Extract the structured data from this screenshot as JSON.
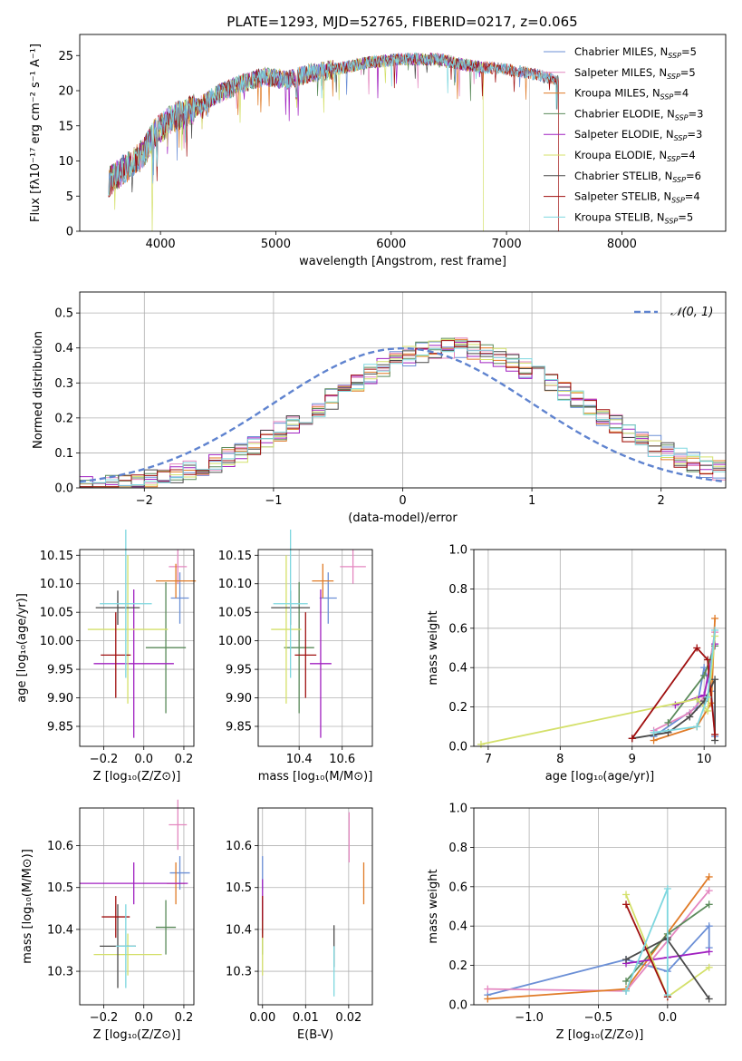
{
  "colors": {
    "Chabrier MILES": "#6b8fd6",
    "Salpeter MILES": "#e487c0",
    "Kroupa MILES": "#e07b27",
    "Chabrier ELODIE": "#5a8a5a",
    "Salpeter ELODIE": "#a020c0",
    "Kroupa ELODIE": "#d4e06a",
    "Chabrier STELIB": "#4a4a4a",
    "Salpeter STELIB": "#a01010",
    "Kroupa STELIB": "#7ed7df"
  },
  "chart_data": [
    {
      "type": "line",
      "title": "PLATE=1293, MJD=52765, FIBERID=0217, z=0.065",
      "xlabel": "wavelength [Angstrom, rest frame]",
      "ylabel": "Flux [fλ10⁻¹⁷ erg cm⁻² s⁻¹ A⁻¹]",
      "xlim": [
        3300,
        8900
      ],
      "ylim": [
        0,
        28
      ],
      "xticks": [
        "4000",
        "5000",
        "6000",
        "7000",
        "8000"
      ],
      "yticks": [
        "0",
        "5",
        "10",
        "15",
        "20",
        "25"
      ],
      "legend_position": "upper-right",
      "legend": [
        "Chabrier MILES, N_SSP=5",
        "Salpeter MILES, N_SSP=5",
        "Kroupa MILES, N_SSP=4",
        "Chabrier ELODIE, N_SSP=3",
        "Salpeter ELODIE, N_SSP=3",
        "Kroupa ELODIE, N_SSP=4",
        "Chabrier STELIB, N_SSP=6",
        "Salpeter STELIB, N_SSP=4",
        "Kroupa STELIB, N_SSP=5"
      ],
      "spectrum_envelope": {
        "x": [
          3550,
          3700,
          3850,
          3950,
          4100,
          4300,
          4500,
          4700,
          4900,
          5100,
          5300,
          5500,
          5800,
          6100,
          6400,
          6700,
          7000,
          7200,
          7450
        ],
        "y": [
          7,
          9,
          11,
          14,
          16,
          17.5,
          19.5,
          21,
          22,
          21.5,
          22.5,
          23,
          24,
          24.5,
          24.5,
          23.5,
          23,
          22.5,
          21.5
        ]
      },
      "dropouts": [
        {
          "x": 3930,
          "y": 0
        },
        {
          "x": 6800,
          "y": 0
        },
        {
          "x": 7400,
          "y": 0
        }
      ]
    },
    {
      "type": "histogram",
      "xlabel": "(data-model)/error",
      "ylabel": "Normed distribution",
      "xlim": [
        -2.5,
        2.5
      ],
      "ylim": [
        0,
        0.56
      ],
      "xticks": [
        "−2",
        "−1",
        "0",
        "1",
        "2"
      ],
      "yticks": [
        "0.0",
        "0.1",
        "0.2",
        "0.3",
        "0.4",
        "0.5"
      ],
      "legend": [
        "𝒩(0, 1)"
      ],
      "legend_position": "upper-right",
      "bin_width": 0.1
    },
    {
      "type": "scatter",
      "xlabel": "Z [log₁₀(Z/Z⊙)]",
      "ylabel": "age  [log₁₀(age/yr)]",
      "xlim": [
        -0.32,
        0.25
      ],
      "ylim": [
        9.815,
        10.16
      ],
      "xticks": [
        "−0.2",
        "0.0",
        "0.2"
      ],
      "yticks": [
        "9.85",
        "9.90",
        "9.95",
        "10.00",
        "10.05",
        "10.10",
        "10.15"
      ],
      "points": [
        {
          "model": "Chabrier MILES",
          "x": 0.18,
          "y": 10.075,
          "xerr": 0.045,
          "yerr": 0.045
        },
        {
          "model": "Salpeter MILES",
          "x": 0.17,
          "y": 10.13,
          "xerr": 0.045,
          "yerr": 0.03
        },
        {
          "model": "Kroupa MILES",
          "x": 0.16,
          "y": 10.105,
          "xerr": 0.1,
          "yerr": 0.03
        },
        {
          "model": "Chabrier ELODIE",
          "x": 0.11,
          "y": 9.988,
          "xerr": 0.1,
          "yerr": 0.115
        },
        {
          "model": "Salpeter ELODIE",
          "x": -0.05,
          "y": 9.96,
          "xerr": 0.2,
          "yerr": 0.13
        },
        {
          "model": "Kroupa ELODIE",
          "x": -0.08,
          "y": 10.02,
          "xerr": 0.2,
          "yerr": 0.13
        },
        {
          "model": "Chabrier STELIB",
          "x": -0.13,
          "y": 10.058,
          "xerr": 0.11,
          "yerr": 0.03
        },
        {
          "model": "Salpeter STELIB",
          "x": -0.14,
          "y": 9.975,
          "xerr": 0.075,
          "yerr": 0.075
        },
        {
          "model": "Kroupa STELIB",
          "x": -0.09,
          "y": 10.065,
          "xerr": 0.13,
          "yerr": 0.13
        }
      ]
    },
    {
      "type": "scatter",
      "xlabel": "mass [log₁₀(M/M⊙)]",
      "xlim": [
        10.21,
        10.74
      ],
      "ylim": [
        9.815,
        10.16
      ],
      "xticks": [
        "10.4",
        "10.6"
      ],
      "yticks": [
        "9.85",
        "9.90",
        "9.95",
        "10.00",
        "10.05",
        "10.10",
        "10.15"
      ],
      "points": [
        {
          "model": "Chabrier MILES",
          "x": 10.535,
          "y": 10.075,
          "xerr": 0.04,
          "yerr": 0.045
        },
        {
          "model": "Salpeter MILES",
          "x": 10.65,
          "y": 10.13,
          "xerr": 0.06,
          "yerr": 0.03
        },
        {
          "model": "Kroupa MILES",
          "x": 10.51,
          "y": 10.105,
          "xerr": 0.05,
          "yerr": 0.03
        },
        {
          "model": "Chabrier ELODIE",
          "x": 10.4,
          "y": 9.988,
          "xerr": 0.07,
          "yerr": 0.115
        },
        {
          "model": "Salpeter ELODIE",
          "x": 10.5,
          "y": 9.96,
          "xerr": 0.05,
          "yerr": 0.13
        },
        {
          "model": "Kroupa ELODIE",
          "x": 10.34,
          "y": 10.02,
          "xerr": 0.07,
          "yerr": 0.13
        },
        {
          "model": "Chabrier STELIB",
          "x": 10.36,
          "y": 10.058,
          "xerr": 0.09,
          "yerr": 0.03
        },
        {
          "model": "Salpeter STELIB",
          "x": 10.43,
          "y": 9.975,
          "xerr": 0.05,
          "yerr": 0.075
        },
        {
          "model": "Kroupa STELIB",
          "x": 10.36,
          "y": 10.065,
          "xerr": 0.08,
          "yerr": 0.13
        }
      ]
    },
    {
      "type": "line",
      "xlabel": "age  [log₁₀(age/yr)]",
      "ylabel": "mass weight",
      "xlim": [
        6.8,
        10.3
      ],
      "ylim": [
        0,
        1
      ],
      "xticks": [
        "7",
        "8",
        "9",
        "10"
      ],
      "yticks": [
        "0.0",
        "0.2",
        "0.4",
        "0.6",
        "0.8",
        "1.0"
      ],
      "series": [
        {
          "name": "Chabrier MILES",
          "x": [
            9.3,
            9.9,
            10.0,
            10.1,
            10.15
          ],
          "y": [
            0.05,
            0.2,
            0.4,
            0.28,
            0.05
          ]
        },
        {
          "name": "Salpeter MILES",
          "x": [
            9.3,
            9.8,
            10.0,
            10.15
          ],
          "y": [
            0.08,
            0.17,
            0.25,
            0.58
          ]
        },
        {
          "name": "Kroupa MILES",
          "x": [
            9.3,
            9.9,
            10.1,
            10.15
          ],
          "y": [
            0.03,
            0.1,
            0.22,
            0.65
          ]
        },
        {
          "name": "Chabrier ELODIE",
          "x": [
            9.5,
            10.0,
            10.15
          ],
          "y": [
            0.12,
            0.36,
            0.51
          ]
        },
        {
          "name": "Salpeter ELODIE",
          "x": [
            9.6,
            10.0,
            10.15
          ],
          "y": [
            0.21,
            0.26,
            0.52
          ]
        },
        {
          "name": "Kroupa ELODIE",
          "x": [
            6.9,
            9.9,
            10.05,
            10.15
          ],
          "y": [
            0.01,
            0.24,
            0.18,
            0.56
          ]
        },
        {
          "name": "Chabrier STELIB",
          "x": [
            9.0,
            9.5,
            9.8,
            10.0,
            10.15,
            10.15
          ],
          "y": [
            0.04,
            0.07,
            0.15,
            0.23,
            0.34,
            0.03
          ]
        },
        {
          "name": "Salpeter STELIB",
          "x": [
            9.0,
            9.9,
            10.05,
            10.15
          ],
          "y": [
            0.04,
            0.5,
            0.44,
            0.06
          ]
        },
        {
          "name": "Kroupa STELIB",
          "x": [
            9.3,
            9.9,
            10.05,
            10.15
          ],
          "y": [
            0.07,
            0.1,
            0.25,
            0.59
          ]
        }
      ]
    },
    {
      "type": "scatter",
      "xlabel": "Z [log₁₀(Z/Z⊙)]",
      "ylabel": "mass [log₁₀(M/M⊙)]",
      "xlim": [
        -0.32,
        0.25
      ],
      "ylim": [
        10.22,
        10.69
      ],
      "xticks": [
        "−0.2",
        "0.0",
        "0.2"
      ],
      "yticks": [
        "10.3",
        "10.4",
        "10.5",
        "10.6"
      ],
      "points": [
        {
          "model": "Chabrier MILES",
          "x": 0.18,
          "y": 10.535,
          "xerr": 0.05,
          "yerr": 0.04
        },
        {
          "model": "Salpeter MILES",
          "x": 0.17,
          "y": 10.65,
          "xerr": 0.045,
          "yerr": 0.06
        },
        {
          "model": "Kroupa MILES",
          "x": 0.16,
          "y": 10.51,
          "xerr": 0.045,
          "yerr": 0.05
        },
        {
          "model": "Chabrier ELODIE",
          "x": 0.11,
          "y": 10.405,
          "xerr": 0.05,
          "yerr": 0.065
        },
        {
          "model": "Salpeter ELODIE",
          "x": -0.05,
          "y": 10.51,
          "xerr": 0.27,
          "yerr": 0.05
        },
        {
          "model": "Kroupa ELODIE",
          "x": -0.08,
          "y": 10.34,
          "xerr": 0.17,
          "yerr": 0.05
        },
        {
          "model": "Chabrier STELIB",
          "x": -0.13,
          "y": 10.36,
          "xerr": 0.09,
          "yerr": 0.1
        },
        {
          "model": "Salpeter STELIB",
          "x": -0.14,
          "y": 10.43,
          "xerr": 0.07,
          "yerr": 0.05
        },
        {
          "model": "Kroupa STELIB",
          "x": -0.09,
          "y": 10.36,
          "xerr": 0.05,
          "yerr": 0.1
        }
      ]
    },
    {
      "type": "scatter",
      "xlabel": "E(B-V)",
      "xlim": [
        -0.001,
        0.0255
      ],
      "ylim": [
        10.22,
        10.69
      ],
      "xticks": [
        "0.00",
        "0.01",
        "0.02"
      ],
      "yticks": [
        "10.3",
        "10.4",
        "10.5",
        "10.6"
      ],
      "points": [
        {
          "model": "Chabrier MILES",
          "x": 0.0,
          "y": 10.535,
          "yerr": 0.04
        },
        {
          "model": "Salpeter MILES",
          "x": 0.0201,
          "y": 10.62,
          "yerr": 0.06
        },
        {
          "model": "Kroupa MILES",
          "x": 0.0235,
          "y": 10.51,
          "yerr": 0.05
        },
        {
          "model": "Chabrier ELODIE",
          "x": 0.0,
          "y": 10.405,
          "yerr": 0.065
        },
        {
          "model": "Salpeter ELODIE",
          "x": 0.0,
          "y": 10.47,
          "yerr": 0.05
        },
        {
          "model": "Kroupa ELODIE",
          "x": 0.0,
          "y": 10.34,
          "yerr": 0.05
        },
        {
          "model": "Chabrier STELIB",
          "x": 0.0166,
          "y": 10.36,
          "yerr": 0.05
        },
        {
          "model": "Salpeter STELIB",
          "x": 0.0,
          "y": 10.43,
          "yerr": 0.05
        },
        {
          "model": "Kroupa STELIB",
          "x": 0.0166,
          "y": 10.3,
          "yerr": 0.06
        }
      ]
    },
    {
      "type": "line",
      "xlabel": "Z [log₁₀(Z/Z⊙)]",
      "ylabel": "mass weight",
      "xlim": [
        -1.4,
        0.42
      ],
      "ylim": [
        0,
        1
      ],
      "xticks": [
        "−1.0",
        "−0.5",
        "0.0"
      ],
      "yticks": [
        "0.0",
        "0.2",
        "0.4",
        "0.6",
        "0.8",
        "1.0"
      ],
      "series": [
        {
          "name": "Chabrier MILES",
          "x": [
            -1.3,
            -0.3,
            0.0,
            0.3,
            0.3
          ],
          "y": [
            0.05,
            0.23,
            0.17,
            0.4,
            0.29
          ]
        },
        {
          "name": "Salpeter MILES",
          "x": [
            -1.3,
            -0.3,
            0.3
          ],
          "y": [
            0.08,
            0.07,
            0.58
          ]
        },
        {
          "name": "Kroupa MILES",
          "x": [
            -1.3,
            -0.3,
            0.3
          ],
          "y": [
            0.03,
            0.08,
            0.65
          ]
        },
        {
          "name": "Chabrier ELODIE",
          "x": [
            -0.3,
            0.0,
            0.3
          ],
          "y": [
            0.12,
            0.36,
            0.51
          ]
        },
        {
          "name": "Salpeter ELODIE",
          "x": [
            -0.3,
            0.0,
            0.3
          ],
          "y": [
            0.21,
            0.24,
            0.27
          ]
        },
        {
          "name": "Kroupa ELODIE",
          "x": [
            -0.3,
            0.0,
            0.3
          ],
          "y": [
            0.56,
            0.04,
            0.19
          ]
        },
        {
          "name": "Chabrier STELIB",
          "x": [
            -0.3,
            0.0,
            0.0,
            0.3
          ],
          "y": [
            0.23,
            0.34,
            0.33,
            0.03
          ]
        },
        {
          "name": "Salpeter STELIB",
          "x": [
            -0.3,
            0.0
          ],
          "y": [
            0.51,
            0.04
          ]
        },
        {
          "name": "Kroupa STELIB",
          "x": [
            -0.3,
            -0.3,
            0.0,
            0.0
          ],
          "y": [
            0.07,
            0.07,
            0.59,
            0.05
          ]
        }
      ]
    }
  ]
}
